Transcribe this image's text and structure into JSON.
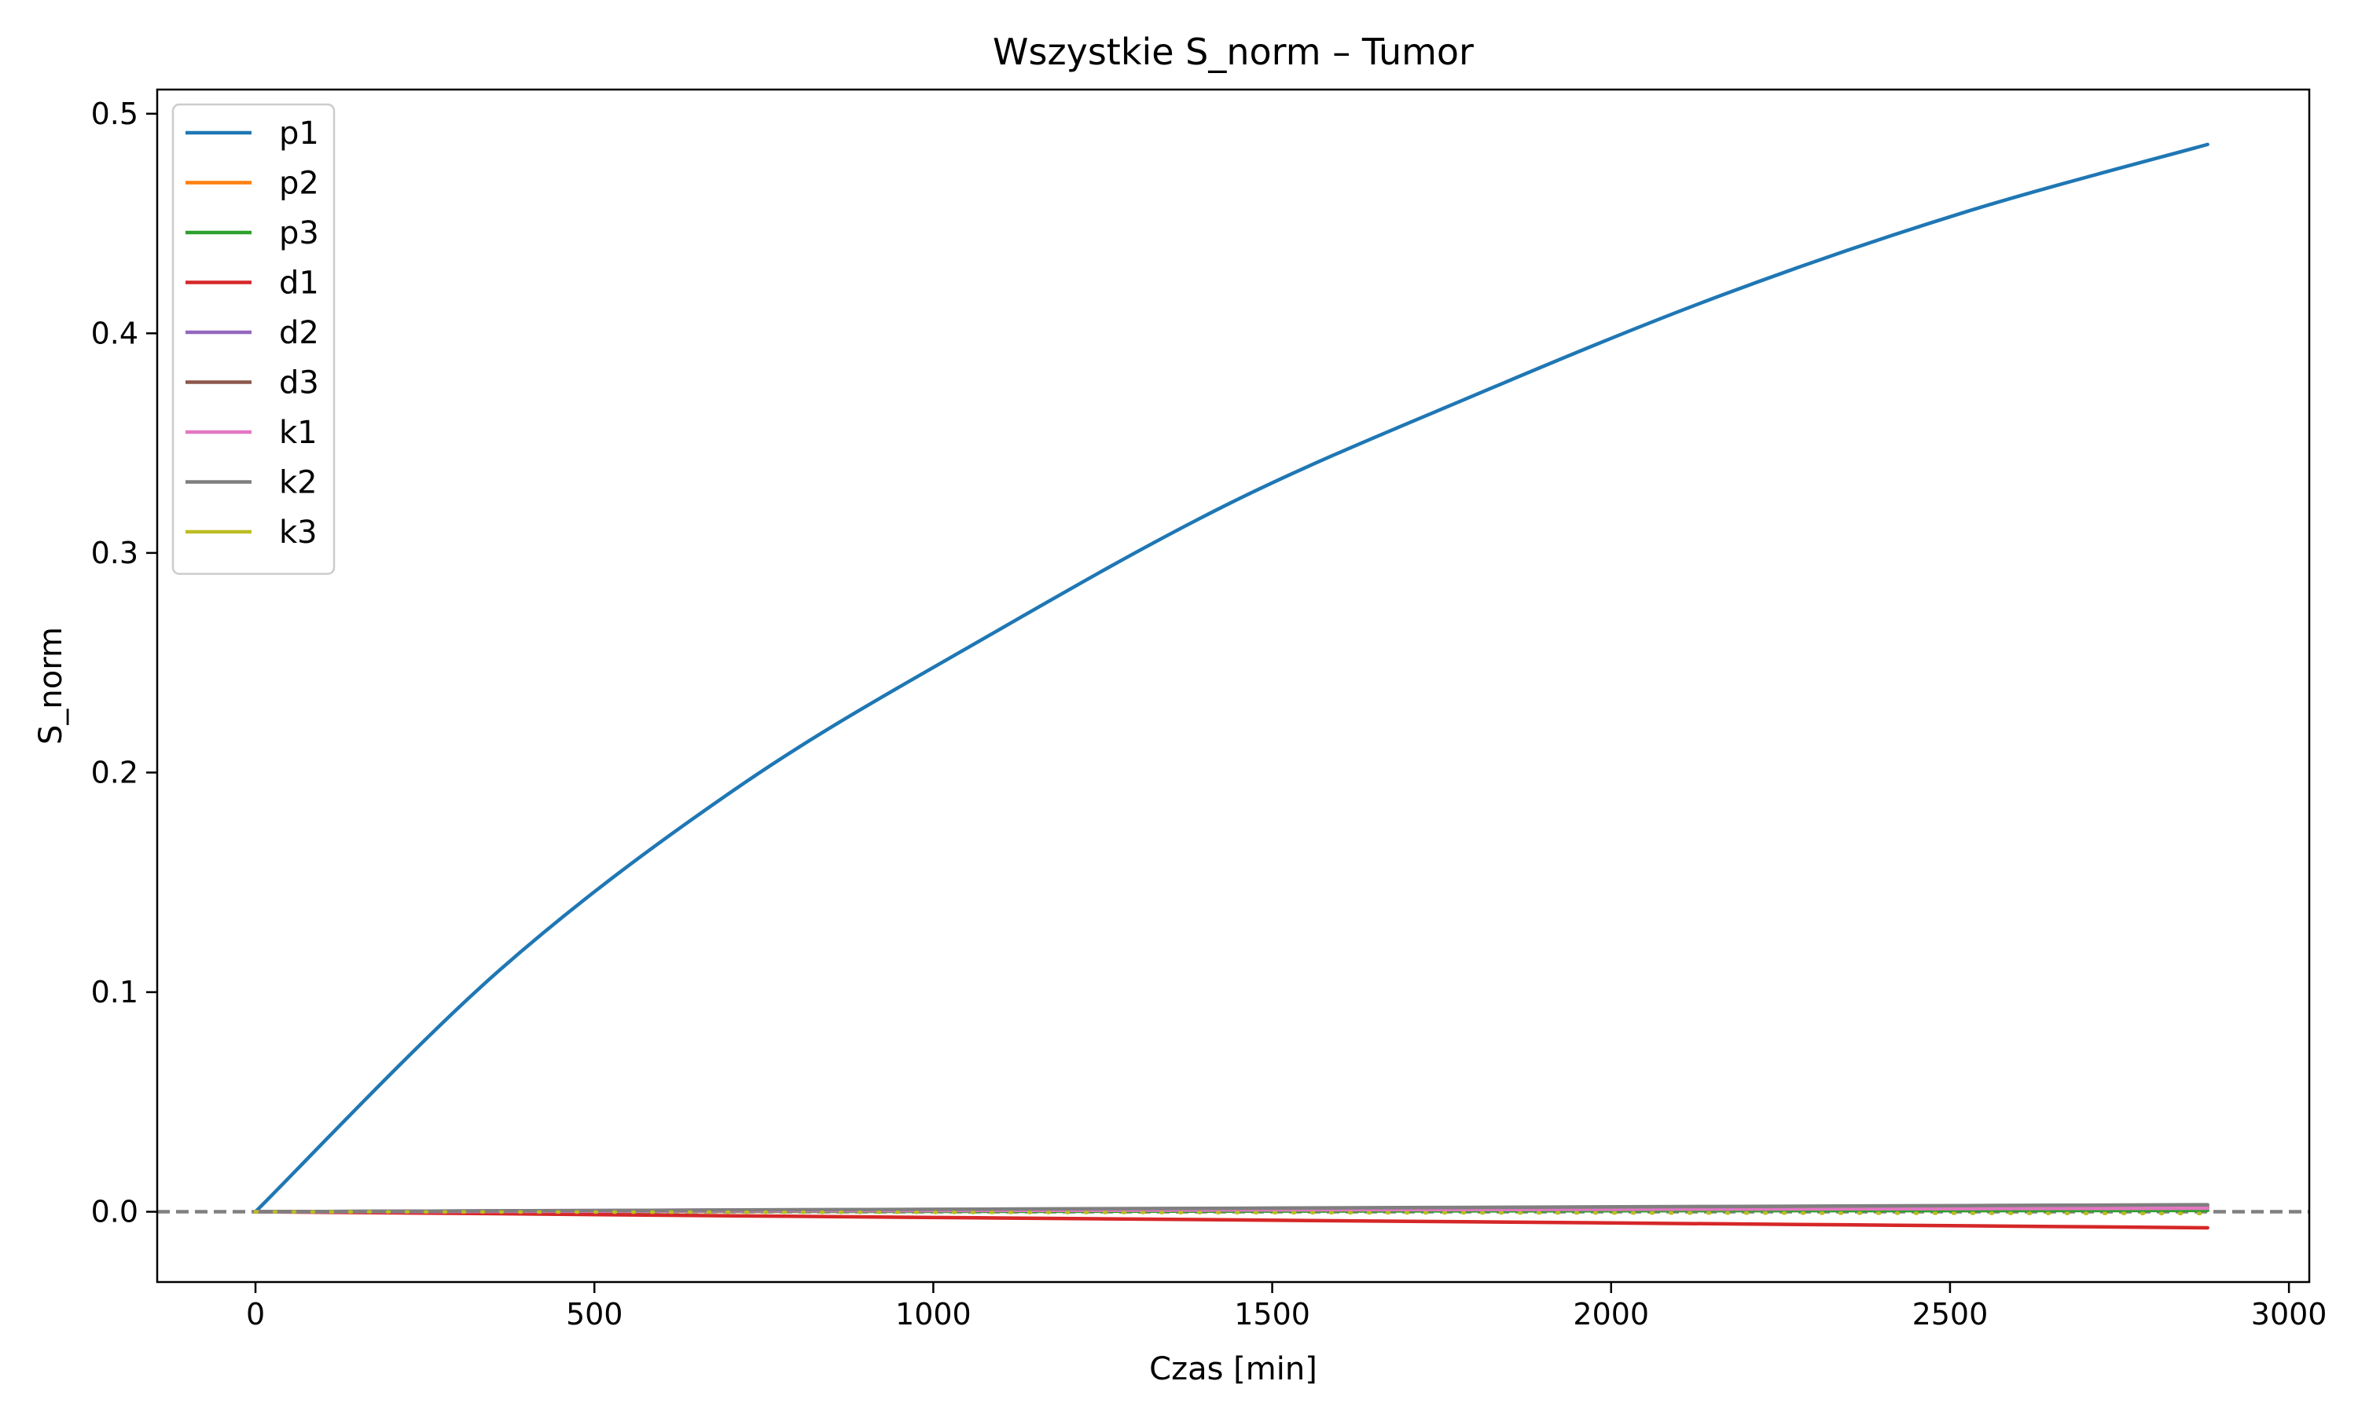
{
  "chart_data": {
    "type": "line",
    "title": "Wszystkie S_norm – Tumor",
    "xlabel": "Czas [min]",
    "ylabel": "S_norm",
    "xlim": [
      -145,
      3030
    ],
    "ylim": [
      -0.032,
      0.511
    ],
    "xticks": [
      0,
      500,
      1000,
      1500,
      2000,
      2500,
      3000
    ],
    "xtick_labels": [
      "0",
      "500",
      "1000",
      "1500",
      "2000",
      "2500",
      "3000"
    ],
    "yticks": [
      0.0,
      0.1,
      0.2,
      0.3,
      0.4,
      0.5
    ],
    "ytick_labels": [
      "0.0",
      "0.1",
      "0.2",
      "0.3",
      "0.4",
      "0.5"
    ],
    "grid": false,
    "legend_position": "top-left",
    "reference_line": {
      "y": 0,
      "style": "dashed",
      "color": "#808080"
    },
    "x": [
      0,
      360,
      720,
      1080,
      1440,
      1800,
      2160,
      2520,
      2880
    ],
    "series": [
      {
        "name": "p1",
        "color": "#1f77b4",
        "values": [
          0.0,
          0.11,
          0.195,
          0.262,
          0.323,
          0.372,
          0.417,
          0.455,
          0.486
        ]
      },
      {
        "name": "p2",
        "color": "#ff7f0e",
        "values": [
          0.0,
          0.0001,
          0.0002,
          0.0003,
          0.0004,
          0.0005,
          0.0006,
          0.0007,
          0.0008
        ]
      },
      {
        "name": "p3",
        "color": "#2ca02c",
        "values": [
          0.0,
          0.0001,
          0.0002,
          0.0002,
          0.0003,
          0.0004,
          0.0005,
          0.0005,
          0.0006
        ]
      },
      {
        "name": "d1",
        "color": "#d62728",
        "values": [
          0.0,
          -0.0009,
          -0.0019,
          -0.0028,
          -0.0037,
          -0.0046,
          -0.0055,
          -0.0064,
          -0.0073
        ]
      },
      {
        "name": "d2",
        "color": "#9467bd",
        "values": [
          0.0,
          0.0004,
          0.0008,
          0.0011,
          0.0015,
          0.0019,
          0.0023,
          0.0026,
          0.003
        ]
      },
      {
        "name": "d3",
        "color": "#8c564b",
        "values": [
          0.0,
          0.0003,
          0.0005,
          0.0008,
          0.001,
          0.0013,
          0.0015,
          0.0018,
          0.002
        ]
      },
      {
        "name": "k1",
        "color": "#e377c2",
        "values": [
          0.0,
          0.0002,
          0.0004,
          0.0006,
          0.0008,
          0.001,
          0.0012,
          0.0014,
          0.0016
        ]
      },
      {
        "name": "k2",
        "color": "#7f7f7f",
        "values": [
          0.0,
          0.0004,
          0.0008,
          0.0012,
          0.0016,
          0.002,
          0.0024,
          0.0028,
          0.0032
        ]
      },
      {
        "name": "k3",
        "color": "#bcbd22",
        "values": [
          0.0,
          -0.0001,
          -0.0002,
          -0.0003,
          -0.0004,
          -0.0005,
          -0.0006,
          -0.0007,
          -0.0008
        ]
      }
    ]
  }
}
